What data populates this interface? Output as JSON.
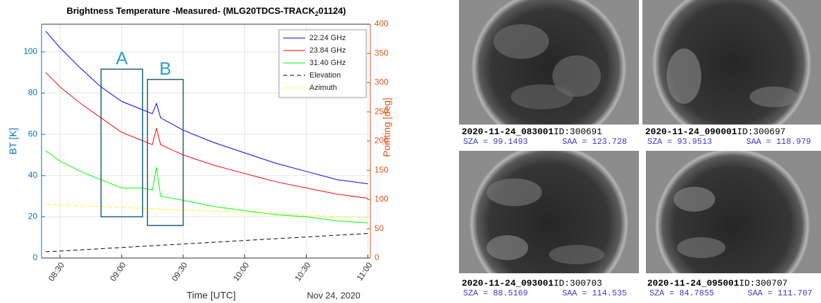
{
  "chart_data": {
    "type": "line",
    "title": "Brightness Temperature -Measured- (MLG20TDCS-TRACK",
    "title_subscript": "2",
    "title_suffix": "01124)",
    "xlabel": "Time [UTC]",
    "ylabel": "BT [K]",
    "y2label": "Pointing [deg]",
    "date_label": "Nov 24, 2020",
    "x": [
      8.383,
      8.5,
      8.667,
      8.833,
      9,
      9.167,
      9.25,
      9.283,
      9.317,
      9.5,
      9.75,
      10,
      10.25,
      10.5,
      10.75,
      11
    ],
    "xlim": [
      8.35,
      11.02
    ],
    "xticks": [
      {
        "value": 8.5,
        "label": "08:30"
      },
      {
        "value": 9,
        "label": "09:00"
      },
      {
        "value": 9.5,
        "label": "09:30"
      },
      {
        "value": 10,
        "label": "10:00"
      },
      {
        "value": 10.5,
        "label": "10:30"
      },
      {
        "value": 11,
        "label": "11:00"
      }
    ],
    "ylim": [
      0,
      113.4
    ],
    "yticks": [
      0,
      20,
      40,
      60,
      80,
      100
    ],
    "y2lim": [
      0,
      400
    ],
    "y2ticks": [
      0,
      50,
      100,
      150,
      200,
      250,
      300,
      350,
      400
    ],
    "grid": true,
    "legend": "upper right",
    "series": [
      {
        "name": "22.24 GHz",
        "color": "#0000ff",
        "dash": "solid",
        "values": [
          110,
          102,
          92,
          83,
          76,
          72,
          70,
          75,
          68,
          62,
          56,
          51,
          46,
          42,
          38,
          36
        ]
      },
      {
        "name": "23.84 GHz",
        "color": "#ff0000",
        "dash": "solid",
        "values": [
          90,
          83,
          75,
          68,
          61,
          57,
          55,
          63,
          55,
          50,
          45,
          41,
          37,
          34,
          31,
          29
        ]
      },
      {
        "name": "31.40 GHz",
        "color": "#00ff00",
        "dash": "solid",
        "values": [
          52,
          47,
          42,
          38,
          34,
          34,
          33,
          44,
          30,
          28,
          25,
          23,
          21,
          20,
          18,
          17
        ]
      },
      {
        "name": "Elevation",
        "color": "#000000",
        "dash": "dashed",
        "axis": "y2",
        "values": [
          10.6,
          12,
          14,
          16,
          18,
          20,
          21,
          21.4,
          21.8,
          24,
          27,
          30,
          33,
          36,
          39,
          42
        ]
      },
      {
        "name": "Azimuth",
        "color": "#ffff00",
        "dash": "dashed",
        "axis": "y2",
        "values": [
          92,
          91,
          89.5,
          88,
          86.5,
          85,
          84.3,
          84,
          83.7,
          82.2,
          80,
          77.8,
          75.6,
          73.4,
          71.2,
          69
        ]
      }
    ],
    "annotations": [
      {
        "label": "A",
        "x": [
          8.833,
          9.17
        ],
        "y": [
          20,
          91.6
        ]
      },
      {
        "label": "B",
        "x": [
          9.21,
          9.5
        ],
        "y": [
          15.8,
          86.6
        ]
      }
    ]
  },
  "images": [
    {
      "file": "2020-11-24_083001",
      "id": "ID:300691",
      "sza": "SZA = 99.1493",
      "saa": "SAA = 123.728"
    },
    {
      "file": "2020-11-24_090001",
      "id": "ID:300697",
      "sza": "SZA = 93.9513",
      "saa": "SAA = 118.979"
    },
    {
      "file": "2020-11-24_093001",
      "id": "ID:300703",
      "sza": "SZA = 88.5169",
      "saa": "SAA = 114.535"
    },
    {
      "file": "2020-11-24_095001",
      "id": "ID:300707",
      "sza": "SZA = 84.7855",
      "saa": "SAA = 111.707"
    }
  ]
}
